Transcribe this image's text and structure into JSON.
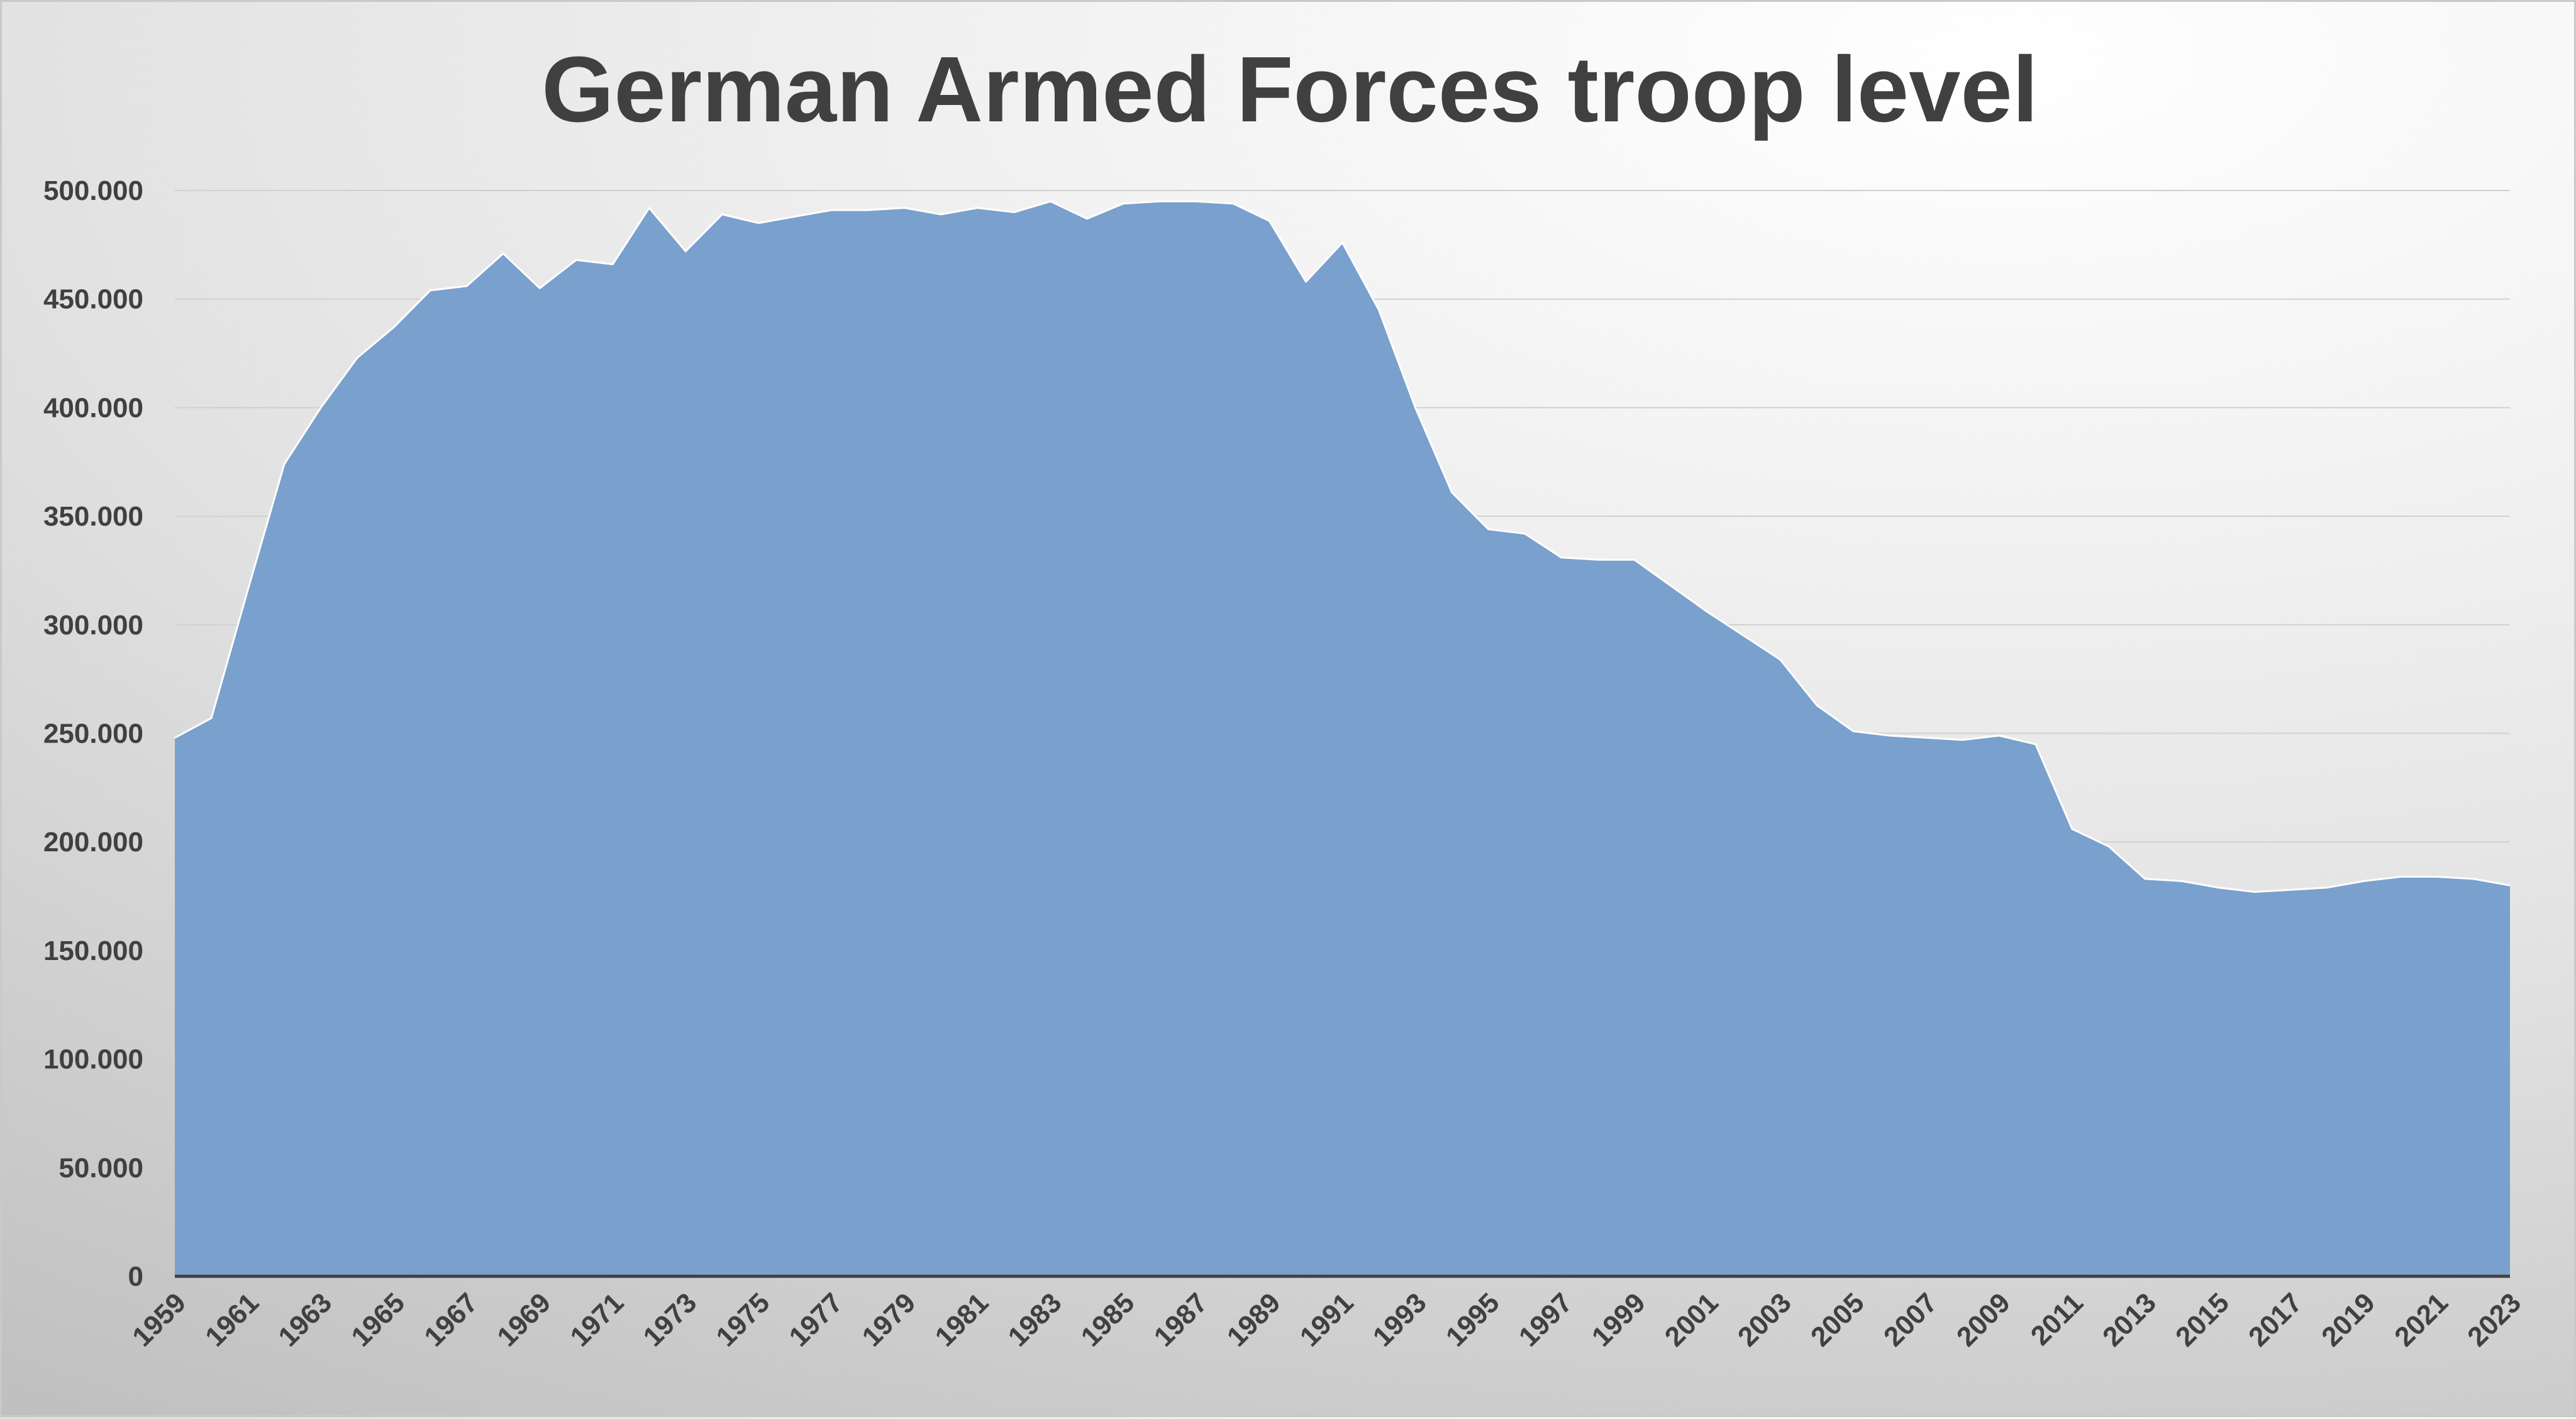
{
  "chart_data": {
    "type": "area",
    "title": "German Armed Forces troop level",
    "xlabel": "",
    "ylabel": "",
    "ylim": [
      0,
      500000
    ],
    "y_ticks": [
      0,
      50000,
      100000,
      150000,
      200000,
      250000,
      300000,
      350000,
      400000,
      450000,
      500000
    ],
    "y_tick_labels": [
      "0",
      "50.000",
      "100.000",
      "150.000",
      "200.000",
      "250.000",
      "300.000",
      "350.000",
      "400.000",
      "450.000",
      "500.000"
    ],
    "x_tick_labels": [
      "1959",
      "1961",
      "1963",
      "1965",
      "1967",
      "1969",
      "1971",
      "1973",
      "1975",
      "1977",
      "1979",
      "1981",
      "1983",
      "1985",
      "1987",
      "1989",
      "1991",
      "1993",
      "1995",
      "1997",
      "1999",
      "2001",
      "2003",
      "2005",
      "2007",
      "2009",
      "2011",
      "2013",
      "2015",
      "2017",
      "2019",
      "2021",
      "2023"
    ],
    "grid": true,
    "legend": "none",
    "fill_color": "#7aa0cd",
    "outline_color": "#ffffff",
    "x": [
      1959,
      1960,
      1961,
      1962,
      1963,
      1964,
      1965,
      1966,
      1967,
      1968,
      1969,
      1970,
      1971,
      1972,
      1973,
      1974,
      1975,
      1976,
      1977,
      1978,
      1979,
      1980,
      1981,
      1982,
      1983,
      1984,
      1985,
      1986,
      1987,
      1988,
      1989,
      1990,
      1991,
      1992,
      1993,
      1994,
      1995,
      1996,
      1997,
      1998,
      1999,
      2000,
      2001,
      2002,
      2003,
      2004,
      2005,
      2006,
      2007,
      2008,
      2009,
      2010,
      2011,
      2012,
      2013,
      2014,
      2015,
      2016,
      2017,
      2018,
      2019,
      2020,
      2021,
      2022,
      2023
    ],
    "values": [
      248000,
      257000,
      316000,
      374000,
      400000,
      423000,
      437000,
      454000,
      456000,
      471000,
      455000,
      468000,
      466000,
      492000,
      472000,
      489000,
      485000,
      488000,
      491000,
      491000,
      492000,
      489000,
      492000,
      490000,
      495000,
      487000,
      494000,
      495000,
      495000,
      494000,
      486000,
      458000,
      476000,
      445000,
      400000,
      361000,
      344000,
      342000,
      331000,
      330000,
      330000,
      318000,
      306000,
      295000,
      284000,
      263000,
      251000,
      249000,
      248000,
      247000,
      249000,
      245000,
      206000,
      198000,
      183000,
      182000,
      179000,
      177000,
      178000,
      179000,
      182000,
      184000,
      184000,
      183000,
      180000
    ]
  }
}
